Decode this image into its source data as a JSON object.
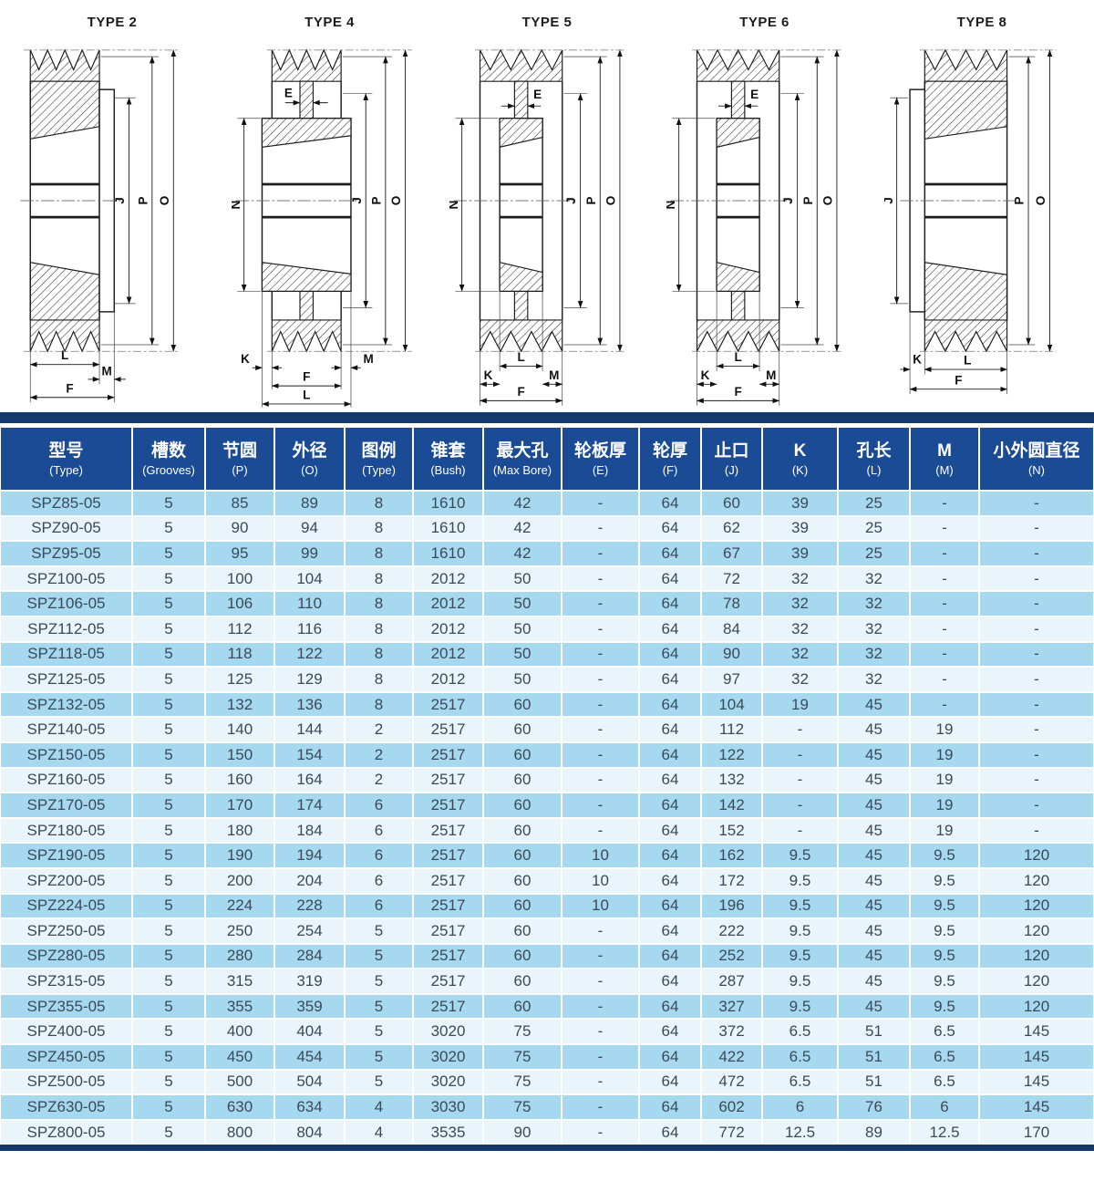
{
  "colors": {
    "header_bg": "#1a4b94",
    "cap_bg": "#16396b",
    "row_odd": "#a6d8f0",
    "row_even": "#e9f4fb",
    "row_text": "#3a4a58",
    "header_text": "#ffffff"
  },
  "diagrams": {
    "items": [
      {
        "title": "TYPE 2",
        "dims": {
          "J": "J",
          "P": "P",
          "O": "O",
          "L": "L",
          "M": "M",
          "F": "F"
        }
      },
      {
        "title": "TYPE 4",
        "dims": {
          "E": "E",
          "N": "N",
          "J": "J",
          "P": "P",
          "O": "O",
          "K": "K",
          "M": "M",
          "F": "F",
          "L": "L"
        }
      },
      {
        "title": "TYPE 5",
        "dims": {
          "E": "E",
          "N": "N",
          "J": "J",
          "P": "P",
          "O": "O",
          "L": "L",
          "K": "K",
          "M": "M",
          "F": "F"
        }
      },
      {
        "title": "TYPE 6",
        "dims": {
          "E": "E",
          "N": "N",
          "J": "J",
          "P": "P",
          "O": "O",
          "L": "L",
          "K": "K",
          "M": "M",
          "F": "F"
        }
      },
      {
        "title": "TYPE 8",
        "dims": {
          "J": "J",
          "P": "P",
          "O": "O",
          "K": "K",
          "L": "L",
          "F": "F"
        }
      }
    ]
  },
  "table": {
    "columns": [
      {
        "zh": "型号",
        "en": "(Type)"
      },
      {
        "zh": "槽数",
        "en": "(Grooves)"
      },
      {
        "zh": "节圆",
        "en": "(P)"
      },
      {
        "zh": "外径",
        "en": "(O)"
      },
      {
        "zh": "图例",
        "en": "(Type)"
      },
      {
        "zh": "锥套",
        "en": "(Bush)"
      },
      {
        "zh": "最大孔",
        "en": "(Max Bore)"
      },
      {
        "zh": "轮板厚",
        "en": "(E)"
      },
      {
        "zh": "轮厚",
        "en": "(F)"
      },
      {
        "zh": "止口",
        "en": "(J)"
      },
      {
        "zh": "K",
        "en": "(K)"
      },
      {
        "zh": "孔长",
        "en": "(L)"
      },
      {
        "zh": "M",
        "en": "(M)"
      },
      {
        "zh": "小外圆直径",
        "en": "(N)"
      }
    ],
    "rows": [
      [
        "SPZ85-05",
        "5",
        "85",
        "89",
        "8",
        "1610",
        "42",
        "-",
        "64",
        "60",
        "39",
        "25",
        "-",
        "-"
      ],
      [
        "SPZ90-05",
        "5",
        "90",
        "94",
        "8",
        "1610",
        "42",
        "-",
        "64",
        "62",
        "39",
        "25",
        "-",
        "-"
      ],
      [
        "SPZ95-05",
        "5",
        "95",
        "99",
        "8",
        "1610",
        "42",
        "-",
        "64",
        "67",
        "39",
        "25",
        "-",
        "-"
      ],
      [
        "SPZ100-05",
        "5",
        "100",
        "104",
        "8",
        "2012",
        "50",
        "-",
        "64",
        "72",
        "32",
        "32",
        "-",
        "-"
      ],
      [
        "SPZ106-05",
        "5",
        "106",
        "110",
        "8",
        "2012",
        "50",
        "-",
        "64",
        "78",
        "32",
        "32",
        "-",
        "-"
      ],
      [
        "SPZ112-05",
        "5",
        "112",
        "116",
        "8",
        "2012",
        "50",
        "-",
        "64",
        "84",
        "32",
        "32",
        "-",
        "-"
      ],
      [
        "SPZ118-05",
        "5",
        "118",
        "122",
        "8",
        "2012",
        "50",
        "-",
        "64",
        "90",
        "32",
        "32",
        "-",
        "-"
      ],
      [
        "SPZ125-05",
        "5",
        "125",
        "129",
        "8",
        "2012",
        "50",
        "-",
        "64",
        "97",
        "32",
        "32",
        "-",
        "-"
      ],
      [
        "SPZ132-05",
        "5",
        "132",
        "136",
        "8",
        "2517",
        "60",
        "-",
        "64",
        "104",
        "19",
        "45",
        "-",
        "-"
      ],
      [
        "SPZ140-05",
        "5",
        "140",
        "144",
        "2",
        "2517",
        "60",
        "-",
        "64",
        "112",
        "-",
        "45",
        "19",
        "-"
      ],
      [
        "SPZ150-05",
        "5",
        "150",
        "154",
        "2",
        "2517",
        "60",
        "-",
        "64",
        "122",
        "-",
        "45",
        "19",
        "-"
      ],
      [
        "SPZ160-05",
        "5",
        "160",
        "164",
        "2",
        "2517",
        "60",
        "-",
        "64",
        "132",
        "-",
        "45",
        "19",
        "-"
      ],
      [
        "SPZ170-05",
        "5",
        "170",
        "174",
        "6",
        "2517",
        "60",
        "-",
        "64",
        "142",
        "-",
        "45",
        "19",
        "-"
      ],
      [
        "SPZ180-05",
        "5",
        "180",
        "184",
        "6",
        "2517",
        "60",
        "-",
        "64",
        "152",
        "-",
        "45",
        "19",
        "-"
      ],
      [
        "SPZ190-05",
        "5",
        "190",
        "194",
        "6",
        "2517",
        "60",
        "10",
        "64",
        "162",
        "9.5",
        "45",
        "9.5",
        "120"
      ],
      [
        "SPZ200-05",
        "5",
        "200",
        "204",
        "6",
        "2517",
        "60",
        "10",
        "64",
        "172",
        "9.5",
        "45",
        "9.5",
        "120"
      ],
      [
        "SPZ224-05",
        "5",
        "224",
        "228",
        "6",
        "2517",
        "60",
        "10",
        "64",
        "196",
        "9.5",
        "45",
        "9.5",
        "120"
      ],
      [
        "SPZ250-05",
        "5",
        "250",
        "254",
        "5",
        "2517",
        "60",
        "-",
        "64",
        "222",
        "9.5",
        "45",
        "9.5",
        "120"
      ],
      [
        "SPZ280-05",
        "5",
        "280",
        "284",
        "5",
        "2517",
        "60",
        "-",
        "64",
        "252",
        "9.5",
        "45",
        "9.5",
        "120"
      ],
      [
        "SPZ315-05",
        "5",
        "315",
        "319",
        "5",
        "2517",
        "60",
        "-",
        "64",
        "287",
        "9.5",
        "45",
        "9.5",
        "120"
      ],
      [
        "SPZ355-05",
        "5",
        "355",
        "359",
        "5",
        "2517",
        "60",
        "-",
        "64",
        "327",
        "9.5",
        "45",
        "9.5",
        "120"
      ],
      [
        "SPZ400-05",
        "5",
        "400",
        "404",
        "5",
        "3020",
        "75",
        "-",
        "64",
        "372",
        "6.5",
        "51",
        "6.5",
        "145"
      ],
      [
        "SPZ450-05",
        "5",
        "450",
        "454",
        "5",
        "3020",
        "75",
        "-",
        "64",
        "422",
        "6.5",
        "51",
        "6.5",
        "145"
      ],
      [
        "SPZ500-05",
        "5",
        "500",
        "504",
        "5",
        "3020",
        "75",
        "-",
        "64",
        "472",
        "6.5",
        "51",
        "6.5",
        "145"
      ],
      [
        "SPZ630-05",
        "5",
        "630",
        "634",
        "4",
        "3030",
        "75",
        "-",
        "64",
        "602",
        "6",
        "76",
        "6",
        "145"
      ],
      [
        "SPZ800-05",
        "5",
        "800",
        "804",
        "4",
        "3535",
        "90",
        "-",
        "64",
        "772",
        "12.5",
        "89",
        "12.5",
        "170"
      ]
    ]
  }
}
